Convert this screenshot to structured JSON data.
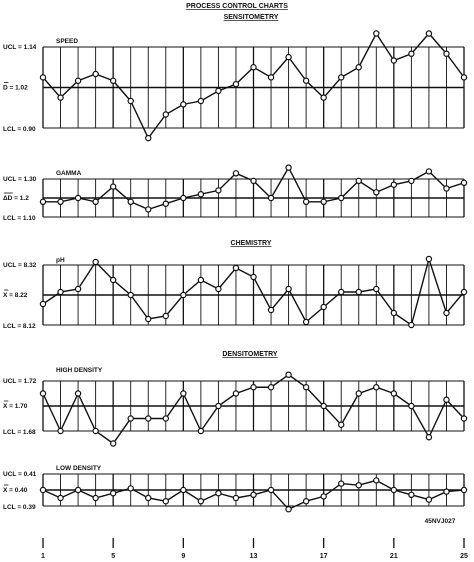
{
  "title": "PROCESS CONTROL CHARTS",
  "section_titles": [
    "SENSITOMETRY",
    "CHEMISTRY",
    "DENSITOMETRY"
  ],
  "figure_id": "45NVJ027",
  "x_ticks": [
    1,
    5,
    9,
    13,
    17,
    21,
    25
  ],
  "chart_data": [
    {
      "type": "line",
      "name": "SPEED",
      "x": [
        1,
        2,
        3,
        4,
        5,
        6,
        7,
        8,
        9,
        10,
        11,
        12,
        13,
        14,
        15,
        16,
        17,
        18,
        19,
        20,
        21,
        22,
        23,
        24,
        25
      ],
      "values": [
        1.05,
        0.99,
        1.04,
        1.06,
        1.04,
        0.98,
        0.87,
        0.94,
        0.97,
        0.98,
        1.01,
        1.03,
        1.08,
        1.05,
        1.11,
        1.04,
        0.99,
        1.05,
        1.08,
        1.18,
        1.1,
        1.12,
        1.18,
        1.12,
        1.05
      ],
      "ucl": 1.14,
      "center": 1.02,
      "lcl": 0.9,
      "ucl_label": "UCL = 1.14",
      "center_label": "D = 1.02",
      "lcl_label": "LCL = 0.90"
    },
    {
      "type": "line",
      "name": "GAMMA",
      "x": [
        1,
        2,
        3,
        4,
        5,
        6,
        7,
        8,
        9,
        10,
        11,
        12,
        13,
        14,
        15,
        16,
        17,
        18,
        19,
        20,
        21,
        22,
        23,
        24,
        25
      ],
      "values": [
        1.18,
        1.18,
        1.2,
        1.18,
        1.26,
        1.18,
        1.14,
        1.17,
        1.2,
        1.22,
        1.24,
        1.33,
        1.29,
        1.2,
        1.36,
        1.18,
        1.18,
        1.2,
        1.29,
        1.23,
        1.27,
        1.29,
        1.34,
        1.25,
        1.28
      ],
      "ucl": 1.3,
      "center": 1.2,
      "lcl": 1.1,
      "ucl_label": "UCL = 1.30",
      "center_label": "ΔD = 1.2",
      "lcl_label": "LCL = 1.10"
    },
    {
      "type": "line",
      "name": "pH",
      "x": [
        1,
        2,
        3,
        4,
        5,
        6,
        7,
        8,
        9,
        10,
        11,
        12,
        13,
        14,
        15,
        16,
        17,
        18,
        19,
        20,
        21,
        22,
        23,
        24,
        25
      ],
      "values": [
        8.19,
        8.23,
        8.24,
        8.33,
        8.27,
        8.22,
        8.14,
        8.15,
        8.22,
        8.27,
        8.24,
        8.31,
        8.28,
        8.17,
        8.24,
        8.13,
        8.18,
        8.23,
        8.23,
        8.24,
        8.16,
        8.12,
        8.34,
        8.16,
        8.23
      ],
      "ucl": 8.32,
      "center": 8.22,
      "lcl": 8.12,
      "ucl_label": "UCL = 8.32",
      "center_label": "X = 8.22",
      "lcl_label": "LCL = 8.12"
    },
    {
      "type": "line",
      "name": "HIGH DENSITY",
      "x": [
        1,
        2,
        3,
        4,
        5,
        6,
        7,
        8,
        9,
        10,
        11,
        12,
        13,
        14,
        15,
        16,
        17,
        18,
        19,
        20,
        21,
        22,
        23,
        24,
        25
      ],
      "values": [
        1.71,
        1.68,
        1.71,
        1.68,
        1.67,
        1.69,
        1.69,
        1.69,
        1.71,
        1.68,
        1.7,
        1.71,
        1.715,
        1.715,
        1.725,
        1.715,
        1.7,
        1.685,
        1.71,
        1.715,
        1.71,
        1.7,
        1.675,
        1.705,
        1.69
      ],
      "ucl": 1.72,
      "center": 1.7,
      "lcl": 1.68,
      "ucl_label": "UCL = 1.72",
      "center_label": "X = 1.70",
      "lcl_label": "LCL = 1.68"
    },
    {
      "type": "line",
      "name": "LOW DENSITY",
      "x": [
        1,
        2,
        3,
        4,
        5,
        6,
        7,
        8,
        9,
        10,
        11,
        12,
        13,
        14,
        15,
        16,
        17,
        18,
        19,
        20,
        21,
        22,
        23,
        24,
        25
      ],
      "values": [
        0.4,
        0.395,
        0.4,
        0.395,
        0.398,
        0.401,
        0.395,
        0.393,
        0.4,
        0.393,
        0.398,
        0.395,
        0.397,
        0.4,
        0.388,
        0.393,
        0.396,
        0.404,
        0.403,
        0.406,
        0.4,
        0.397,
        0.394,
        0.399,
        0.4
      ],
      "ucl": 0.41,
      "center": 0.4,
      "lcl": 0.39,
      "ucl_label": "UCL = 0.41",
      "center_label": "X = 0.40",
      "lcl_label": "LCL = 0.39"
    }
  ]
}
